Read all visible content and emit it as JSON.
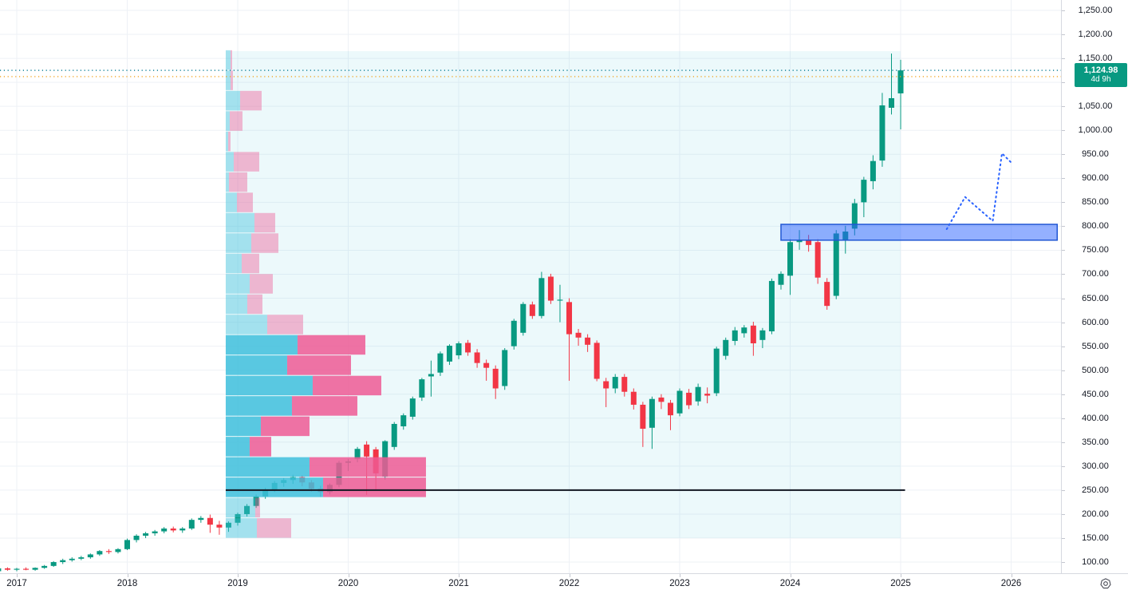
{
  "chart": {
    "last_price_label": {
      "price": "1,124.98",
      "countdown": "4d 9h",
      "bg_color": "#089981"
    },
    "price_scale": {
      "ticks": [
        "1,250.00",
        "1,200.00",
        "1,150.00",
        "1,100.00",
        "1,050.00",
        "1,000.00",
        "950.00",
        "900.00",
        "850.00",
        "800.00",
        "750.00",
        "700.00",
        "650.00",
        "600.00",
        "550.00",
        "500.00",
        "450.00",
        "400.00",
        "350.00",
        "300.00",
        "250.00",
        "200.00",
        "150.00",
        "100.00"
      ]
    },
    "time_scale": {
      "years": [
        "2017",
        "2018",
        "2019",
        "2020",
        "2021",
        "2022",
        "2023",
        "2024",
        "2025",
        "2026"
      ]
    },
    "settings_icon": "gear-icon"
  },
  "chart_data": {
    "type": "candlestick",
    "interval": "monthly",
    "grid": true,
    "y_axis": {
      "min": 100,
      "max": 1250,
      "step": 50,
      "side": "right"
    },
    "x_axis": {
      "start": "2016-11",
      "end": "2026-07",
      "unit": "month"
    },
    "colors": {
      "up": "#089981",
      "down": "#f23645",
      "grid": "#eef1f6",
      "axis_text": "#131722"
    },
    "candles": [
      [
        "2016-11",
        81,
        88,
        78,
        87
      ],
      [
        "2016-12",
        87,
        89,
        82,
        84
      ],
      [
        "2017-01",
        84,
        88,
        81,
        86
      ],
      [
        "2017-02",
        86,
        89,
        83,
        84
      ],
      [
        "2017-03",
        84,
        89,
        82,
        88
      ],
      [
        "2017-04",
        88,
        94,
        86,
        92
      ],
      [
        "2017-05",
        92,
        102,
        90,
        100
      ],
      [
        "2017-06",
        100,
        107,
        96,
        104
      ],
      [
        "2017-07",
        104,
        110,
        101,
        107
      ],
      [
        "2017-08",
        107,
        113,
        104,
        110
      ],
      [
        "2017-09",
        110,
        118,
        107,
        116
      ],
      [
        "2017-10",
        116,
        125,
        113,
        123
      ],
      [
        "2017-11",
        123,
        127,
        117,
        121
      ],
      [
        "2017-12",
        121,
        129,
        118,
        127
      ],
      [
        "2018-01",
        127,
        149,
        125,
        146
      ],
      [
        "2018-02",
        146,
        158,
        141,
        155
      ],
      [
        "2018-03",
        155,
        163,
        150,
        160
      ],
      [
        "2018-04",
        160,
        167,
        155,
        164
      ],
      [
        "2018-05",
        164,
        173,
        160,
        170
      ],
      [
        "2018-06",
        170,
        174,
        162,
        166
      ],
      [
        "2018-07",
        166,
        173,
        161,
        170
      ],
      [
        "2018-08",
        170,
        191,
        167,
        188
      ],
      [
        "2018-09",
        188,
        196,
        182,
        192
      ],
      [
        "2018-10",
        192,
        199,
        161,
        178
      ],
      [
        "2018-11",
        178,
        186,
        157,
        172
      ],
      [
        "2018-12",
        172,
        185,
        163,
        182
      ],
      [
        "2019-01",
        182,
        203,
        176,
        200
      ],
      [
        "2019-02",
        200,
        221,
        195,
        217
      ],
      [
        "2019-03",
        217,
        241,
        213,
        237
      ],
      [
        "2019-04",
        237,
        255,
        232,
        251
      ],
      [
        "2019-05",
        251,
        269,
        246,
        265
      ],
      [
        "2019-06",
        265,
        275,
        257,
        271
      ],
      [
        "2019-07",
        271,
        282,
        263,
        277
      ],
      [
        "2019-08",
        277,
        281,
        258,
        266
      ],
      [
        "2019-09",
        266,
        271,
        247,
        253
      ],
      [
        "2019-10",
        253,
        259,
        236,
        246
      ],
      [
        "2019-11",
        246,
        264,
        241,
        261
      ],
      [
        "2019-12",
        261,
        311,
        256,
        307
      ],
      [
        "2020-01",
        307,
        315,
        290,
        310
      ],
      [
        "2020-02",
        315,
        340,
        308,
        336
      ],
      [
        "2020-03",
        345,
        352,
        240,
        320
      ],
      [
        "2020-04",
        335,
        340,
        249,
        285
      ],
      [
        "2020-05",
        278,
        354,
        272,
        352
      ],
      [
        "2020-06",
        340,
        392,
        334,
        388
      ],
      [
        "2020-07",
        383,
        410,
        376,
        406
      ],
      [
        "2020-08",
        403,
        445,
        397,
        441
      ],
      [
        "2020-09",
        443,
        484,
        436,
        481
      ],
      [
        "2020-10",
        487,
        520,
        445,
        492
      ],
      [
        "2020-11",
        495,
        539,
        488,
        535
      ],
      [
        "2020-12",
        518,
        554,
        511,
        551
      ],
      [
        "2021-01",
        531,
        560,
        523,
        556
      ],
      [
        "2021-02",
        557,
        563,
        530,
        537
      ],
      [
        "2021-03",
        537,
        544,
        505,
        515
      ],
      [
        "2021-04",
        515,
        522,
        478,
        505
      ],
      [
        "2021-05",
        503,
        510,
        440,
        462
      ],
      [
        "2021-06",
        467,
        546,
        459,
        542
      ],
      [
        "2021-07",
        550,
        607,
        543,
        603
      ],
      [
        "2021-08",
        578,
        642,
        572,
        638
      ],
      [
        "2021-09",
        637,
        643,
        607,
        613
      ],
      [
        "2021-10",
        613,
        705,
        608,
        692
      ],
      [
        "2021-11",
        695,
        701,
        638,
        645
      ],
      [
        "2021-12",
        645,
        678,
        600,
        647
      ],
      [
        "2022-01",
        642,
        650,
        478,
        575
      ],
      [
        "2022-02",
        578,
        586,
        551,
        568
      ],
      [
        "2022-03",
        568,
        575,
        538,
        553
      ],
      [
        "2022-04",
        557,
        562,
        477,
        482
      ],
      [
        "2022-05",
        477,
        484,
        423,
        462
      ],
      [
        "2022-06",
        462,
        492,
        452,
        486
      ],
      [
        "2022-07",
        486,
        492,
        445,
        455
      ],
      [
        "2022-08",
        455,
        462,
        418,
        428
      ],
      [
        "2022-09",
        428,
        434,
        340,
        378
      ],
      [
        "2022-10",
        380,
        445,
        336,
        440
      ],
      [
        "2022-11",
        443,
        450,
        419,
        434
      ],
      [
        "2022-12",
        432,
        438,
        375,
        406
      ],
      [
        "2023-01",
        410,
        462,
        404,
        457
      ],
      [
        "2023-02",
        453,
        461,
        419,
        427
      ],
      [
        "2023-03",
        435,
        472,
        426,
        465
      ],
      [
        "2023-04",
        451,
        464,
        431,
        447
      ],
      [
        "2023-05",
        452,
        549,
        446,
        545
      ],
      [
        "2023-06",
        530,
        568,
        522,
        563
      ],
      [
        "2023-07",
        561,
        590,
        552,
        583
      ],
      [
        "2023-08",
        577,
        594,
        568,
        589
      ],
      [
        "2023-09",
        593,
        601,
        530,
        556
      ],
      [
        "2023-10",
        563,
        588,
        546,
        583
      ],
      [
        "2023-11",
        581,
        691,
        575,
        686
      ],
      [
        "2023-12",
        678,
        706,
        668,
        701
      ],
      [
        "2024-01",
        697,
        773,
        657,
        767
      ],
      [
        "2024-02",
        767,
        792,
        751,
        771
      ],
      [
        "2024-03",
        772,
        782,
        747,
        761
      ],
      [
        "2024-04",
        767,
        773,
        680,
        693
      ],
      [
        "2024-05",
        684,
        692,
        626,
        634
      ],
      [
        "2024-06",
        655,
        792,
        648,
        785
      ],
      [
        "2024-07",
        770,
        801,
        743,
        789
      ],
      [
        "2024-08",
        795,
        857,
        781,
        848
      ],
      [
        "2024-09",
        850,
        903,
        819,
        897
      ],
      [
        "2024-10",
        894,
        948,
        877,
        936
      ],
      [
        "2024-11",
        937,
        1078,
        924,
        1052
      ],
      [
        "2024-12",
        1047,
        1160,
        1033,
        1067
      ],
      [
        "2025-01",
        1077,
        1147,
        1002,
        1124.98
      ]
    ],
    "volume_profile": {
      "anchor_time": "2018-12",
      "price_top": 1167,
      "price_bottom": 149,
      "row_count": 24,
      "up_color": "#3fc0dc",
      "down_color": "#ee5a94",
      "rows": [
        {
          "up": 6,
          "down": 2,
          "faded": true
        },
        {
          "up": 6,
          "down": 3,
          "faded": true
        },
        {
          "up": 18,
          "down": 27,
          "faded": true
        },
        {
          "up": 5,
          "down": 16,
          "faded": true
        },
        {
          "up": 3,
          "down": 3,
          "faded": true
        },
        {
          "up": 10,
          "down": 32,
          "faded": true
        },
        {
          "up": 4,
          "down": 23,
          "faded": true
        },
        {
          "up": 14,
          "down": 20,
          "faded": true
        },
        {
          "up": 36,
          "down": 26,
          "faded": true
        },
        {
          "up": 32,
          "down": 34,
          "faded": true
        },
        {
          "up": 20,
          "down": 22,
          "faded": true
        },
        {
          "up": 30,
          "down": 29,
          "faded": true
        },
        {
          "up": 27,
          "down": 19,
          "faded": true
        },
        {
          "up": 52,
          "down": 45,
          "faded": true
        },
        {
          "up": 90,
          "down": 85,
          "faded": false
        },
        {
          "up": 77,
          "down": 80,
          "faded": false
        },
        {
          "up": 109,
          "down": 86,
          "faded": false
        },
        {
          "up": 83,
          "down": 82,
          "faded": false
        },
        {
          "up": 44,
          "down": 61,
          "faded": false
        },
        {
          "up": 30,
          "down": 27,
          "faded": false
        },
        {
          "up": 105,
          "down": 146,
          "faded": false
        },
        {
          "up": 122,
          "down": 129,
          "faded": false
        },
        {
          "up": 37,
          "down": 6,
          "faded": true
        },
        {
          "up": 39,
          "down": 43,
          "faded": true
        }
      ]
    },
    "overlays": {
      "range_highlight": {
        "from": "2018-12",
        "to": "2025-01",
        "price_top": 1165,
        "price_bottom": 150,
        "color": "rgba(66,192,220,0.10)"
      },
      "support_line": {
        "price": 250,
        "from": "2018-12",
        "to": "2025-01",
        "color": "#131722",
        "width": 2
      },
      "zone_box": {
        "from": "2023-12",
        "to": "2026-06",
        "price_top": 804,
        "price_bottom": 771,
        "fill": "rgba(41,98,255,0.5)",
        "border": "#2157d4"
      },
      "price_line": {
        "price": 1125,
        "style": "dotted",
        "color": "#14839c"
      },
      "alert_line": {
        "price": 1112,
        "style": "dotted",
        "color": "#f2a41f"
      },
      "projection_path": {
        "style": "dotted",
        "color": "#2962ff",
        "points": [
          {
            "t": "2025-06",
            "price": 794
          },
          {
            "t": "2025-08",
            "price": 861
          },
          {
            "t": "2025-11",
            "price": 811
          },
          {
            "t": "2025-12",
            "price": 952
          },
          {
            "t": "2026-01",
            "price": 933
          }
        ]
      }
    }
  }
}
